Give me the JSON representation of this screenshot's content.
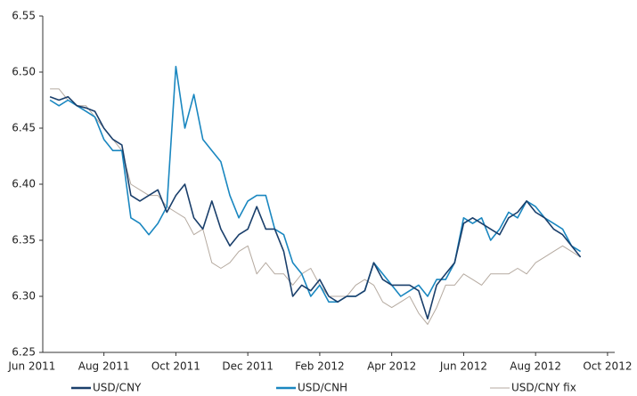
{
  "chart_data": {
    "type": "line",
    "x": [
      0.5,
      0.75,
      1,
      1.25,
      1.5,
      1.75,
      2,
      2.25,
      2.5,
      2.75,
      3,
      3.25,
      3.5,
      3.75,
      4,
      4.25,
      4.5,
      4.75,
      5,
      5.25,
      5.5,
      5.75,
      6,
      6.25,
      6.5,
      6.75,
      7,
      7.25,
      7.5,
      7.75,
      8,
      8.25,
      8.5,
      8.75,
      9,
      9.25,
      9.5,
      9.75,
      10,
      10.25,
      10.5,
      10.75,
      11,
      11.25,
      11.5,
      11.75,
      12,
      12.25,
      12.5,
      12.75,
      13,
      13.25,
      13.5,
      13.75,
      14,
      14.25,
      14.5,
      14.75,
      15,
      15.25
    ],
    "series": [
      {
        "name": "USD/CNY",
        "color": "#1a3f6b",
        "values": [
          6.478,
          6.475,
          6.478,
          6.47,
          6.468,
          6.465,
          6.45,
          6.44,
          6.435,
          6.39,
          6.385,
          6.39,
          6.395,
          6.375,
          6.39,
          6.4,
          6.37,
          6.36,
          6.385,
          6.36,
          6.345,
          6.355,
          6.36,
          6.38,
          6.36,
          6.36,
          6.34,
          6.3,
          6.31,
          6.305,
          6.315,
          6.3,
          6.295,
          6.3,
          6.3,
          6.305,
          6.33,
          6.315,
          6.31,
          6.31,
          6.31,
          6.305,
          6.28,
          6.31,
          6.32,
          6.33,
          6.365,
          6.37,
          6.365,
          6.36,
          6.355,
          6.37,
          6.375,
          6.385,
          6.375,
          6.37,
          6.36,
          6.355,
          6.345,
          6.335
        ]
      },
      {
        "name": "USD/CNH",
        "color": "#1a87c0",
        "values": [
          6.475,
          6.47,
          6.475,
          6.47,
          6.465,
          6.46,
          6.44,
          6.43,
          6.43,
          6.37,
          6.365,
          6.355,
          6.365,
          6.38,
          6.505,
          6.45,
          6.48,
          6.44,
          6.43,
          6.42,
          6.39,
          6.37,
          6.385,
          6.39,
          6.39,
          6.36,
          6.355,
          6.33,
          6.32,
          6.3,
          6.31,
          6.295,
          6.295,
          6.3,
          6.3,
          6.305,
          6.33,
          6.32,
          6.31,
          6.3,
          6.305,
          6.31,
          6.3,
          6.315,
          6.315,
          6.33,
          6.37,
          6.365,
          6.37,
          6.35,
          6.36,
          6.375,
          6.37,
          6.385,
          6.38,
          6.37,
          6.365,
          6.36,
          6.345,
          6.34
        ]
      },
      {
        "name": "USD/CNY fix",
        "color": "#b5aaa0",
        "values": [
          6.485,
          6.485,
          6.475,
          6.47,
          6.47,
          6.46,
          6.45,
          6.44,
          6.43,
          6.4,
          6.395,
          6.39,
          6.39,
          6.38,
          6.375,
          6.37,
          6.355,
          6.36,
          6.33,
          6.325,
          6.33,
          6.34,
          6.345,
          6.32,
          6.33,
          6.32,
          6.32,
          6.31,
          6.32,
          6.325,
          6.31,
          6.3,
          6.3,
          6.3,
          6.31,
          6.315,
          6.31,
          6.295,
          6.29,
          6.295,
          6.3,
          6.285,
          6.275,
          6.29,
          6.31,
          6.31,
          6.32,
          6.315,
          6.31,
          6.32,
          6.32,
          6.32,
          6.325,
          6.32,
          6.33,
          6.335,
          6.34,
          6.345,
          6.34,
          6.335
        ]
      }
    ],
    "xlim": [
      0.3,
      16.2
    ],
    "xticks": [
      {
        "value": 0,
        "label": "Jun 2011"
      },
      {
        "value": 2,
        "label": "Aug 2011"
      },
      {
        "value": 4,
        "label": "Oct 2011"
      },
      {
        "value": 6,
        "label": "Dec 2011"
      },
      {
        "value": 8,
        "label": "Feb 2012"
      },
      {
        "value": 10,
        "label": "Apr 2012"
      },
      {
        "value": 12,
        "label": "Jun 2012"
      },
      {
        "value": 14,
        "label": "Aug 2012"
      },
      {
        "value": 16,
        "label": "Oct 2012"
      }
    ],
    "ylim": [
      6.25,
      6.55
    ],
    "yticks": [
      6.25,
      {
        "value": 6.3,
        "label": "6.30"
      },
      6.35,
      {
        "value": 6.4,
        "label": "6.40"
      },
      6.45,
      {
        "value": 6.5,
        "label": "6.50"
      },
      6.55
    ],
    "grid": false,
    "legend": "bottom"
  }
}
